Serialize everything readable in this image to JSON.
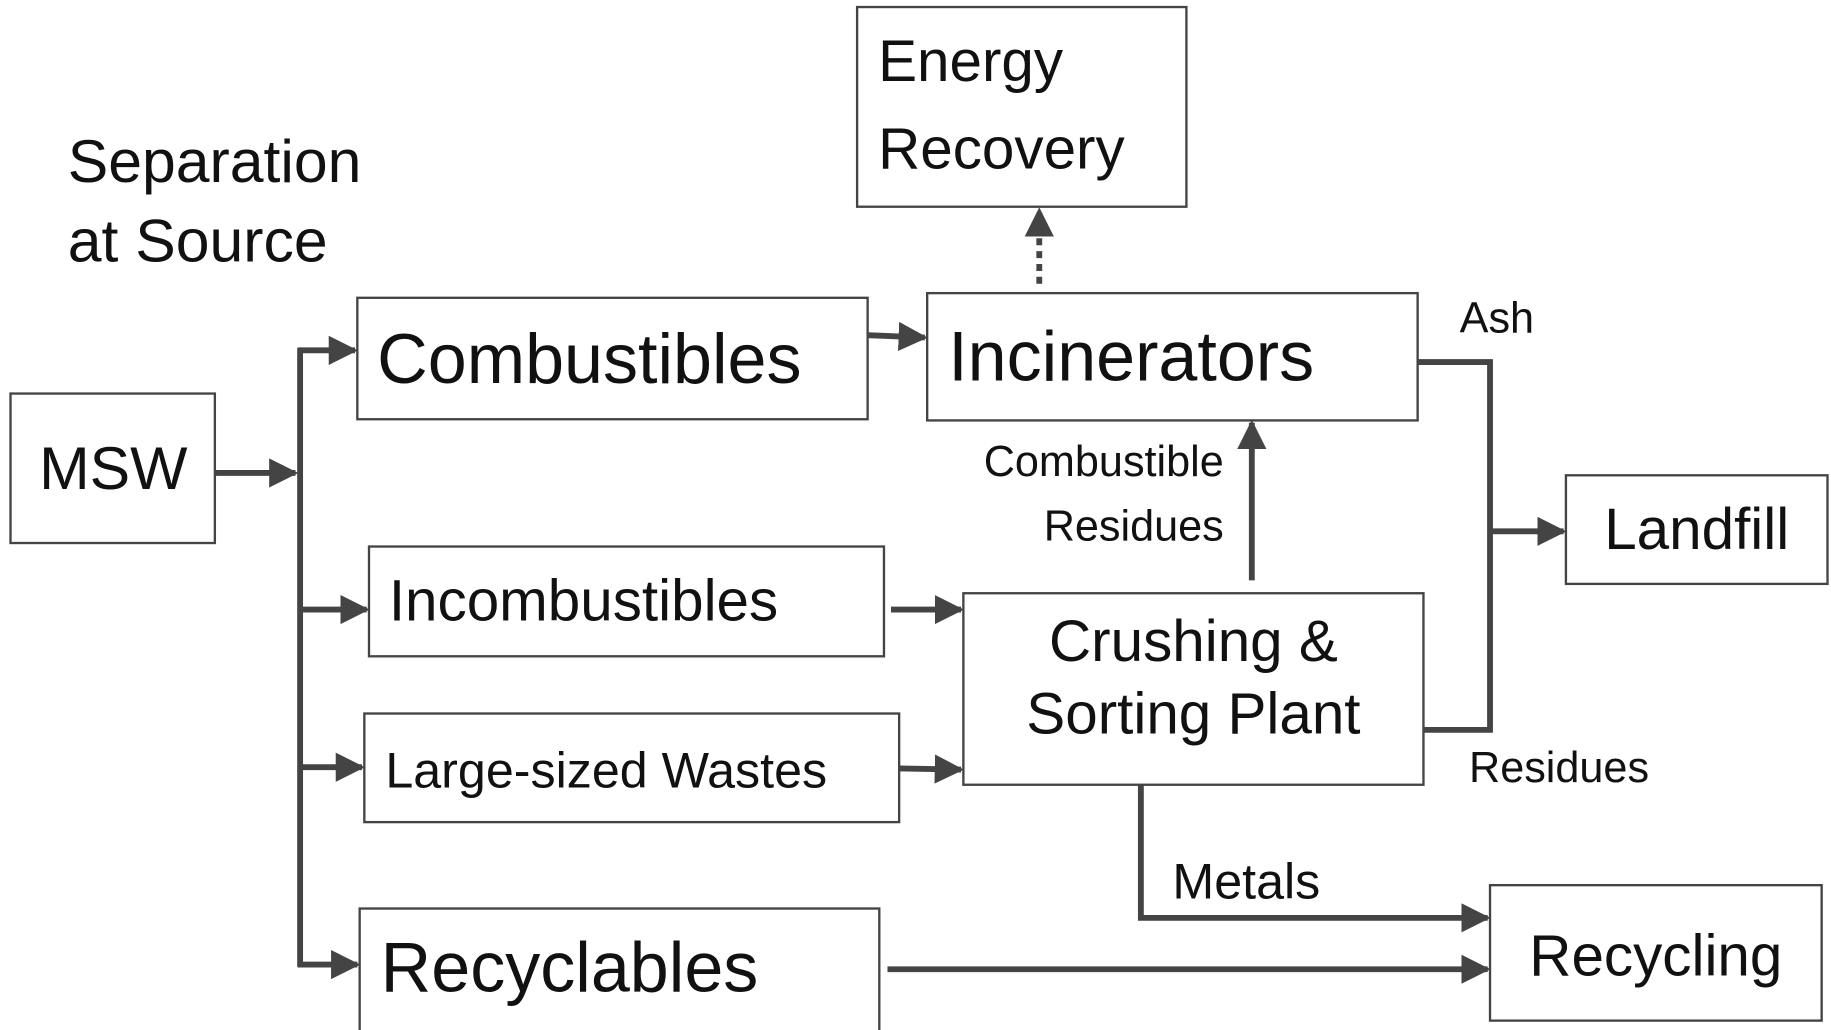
{
  "title_lines": [
    "Separation",
    "at Source"
  ],
  "nodes": [
    {
      "label": "MSW"
    },
    {
      "label": "Combustibles"
    },
    {
      "label": "Incombustibles"
    },
    {
      "label": "Large-sized Wastes"
    },
    {
      "label": "Recyclables"
    },
    {
      "label_lines": [
        "Energy",
        "Recovery"
      ]
    },
    {
      "label": "Incinerators"
    },
    {
      "label_lines": [
        "Crushing &",
        "Sorting Plant"
      ]
    },
    {
      "label": "Landfill"
    },
    {
      "label": "Recycling"
    }
  ],
  "edge_labels": {
    "ash": "Ash",
    "residues": "Residues",
    "combustible_residues": [
      "Combustible",
      "Residues"
    ],
    "metals": "Metals"
  }
}
